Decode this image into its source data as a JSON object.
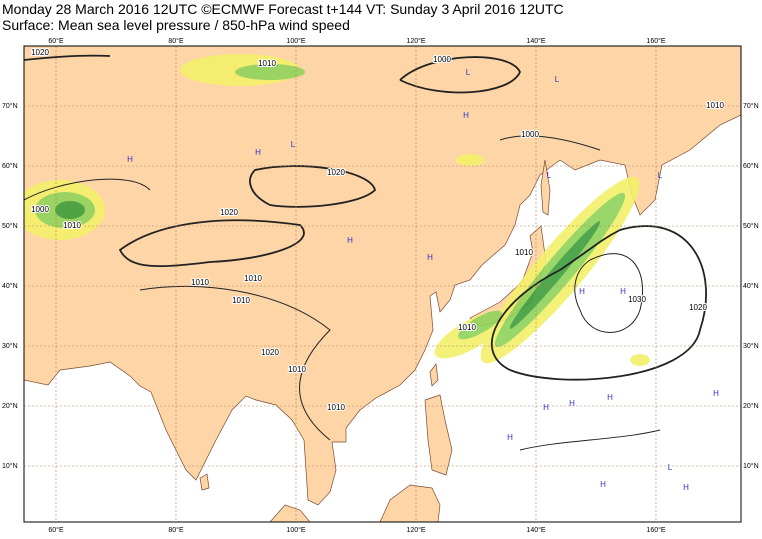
{
  "header": {
    "title": "Monday 28 March 2016 12UTC ©ECMWF Forecast t+144 VT: Sunday 3 April 2016 12UTC",
    "subtitle": "Surface: Mean sea level pressure / 850-hPa wind speed"
  },
  "map": {
    "longitude_labels": [
      "60°E",
      "80°E",
      "100°E",
      "120°E",
      "140°E",
      "160°E"
    ],
    "latitude_labels": [
      "70°N",
      "60°N",
      "50°N",
      "40°N",
      "30°N",
      "20°N",
      "10°N"
    ],
    "isobar_labels": [
      "1020",
      "1010",
      "1000",
      "1010",
      "1000",
      "1020",
      "1020",
      "1000",
      "1010",
      "1010",
      "1010",
      "1010",
      "1010",
      "1010",
      "1030",
      "1020",
      "1020",
      "1010",
      "1010"
    ],
    "pressure_centres": [
      "L",
      "H",
      "L",
      "H",
      "L",
      "H",
      "H",
      "L",
      "H",
      "H",
      "H",
      "L",
      "H",
      "H",
      "H",
      "L",
      "H",
      "H",
      "H",
      "H"
    ]
  }
}
